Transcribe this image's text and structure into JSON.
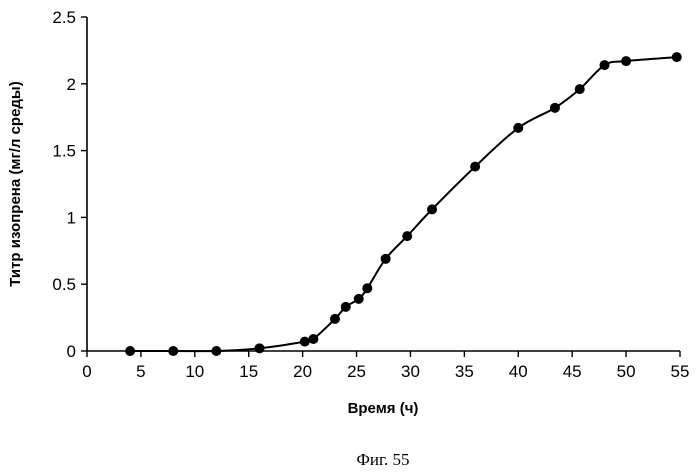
{
  "chart_data": {
    "type": "line",
    "xlabel": "Время (ч)",
    "ylabel": "Титр изопрена (мг/л среды)",
    "caption": "Фиг. 55",
    "xlim": [
      0,
      55
    ],
    "ylim": [
      0,
      2.5
    ],
    "x_ticks": [
      "0",
      "5",
      "10",
      "15",
      "20",
      "25",
      "30",
      "35",
      "40",
      "45",
      "50",
      "55"
    ],
    "y_ticks": [
      "0",
      "0.5",
      "1",
      "1.5",
      "2",
      "2.5"
    ],
    "grid": false,
    "series": [
      {
        "x": [
          4,
          8,
          12,
          16,
          20.2,
          21,
          23,
          24,
          25.2,
          26,
          27.7,
          29.7,
          32,
          36,
          40,
          43.4,
          45.7,
          48,
          50,
          54.7
        ],
        "y": [
          0.0,
          0.0,
          0.0,
          0.02,
          0.07,
          0.09,
          0.24,
          0.33,
          0.39,
          0.47,
          0.69,
          0.86,
          1.06,
          1.38,
          1.67,
          1.82,
          1.96,
          2.14,
          2.17,
          2.2
        ]
      }
    ]
  }
}
